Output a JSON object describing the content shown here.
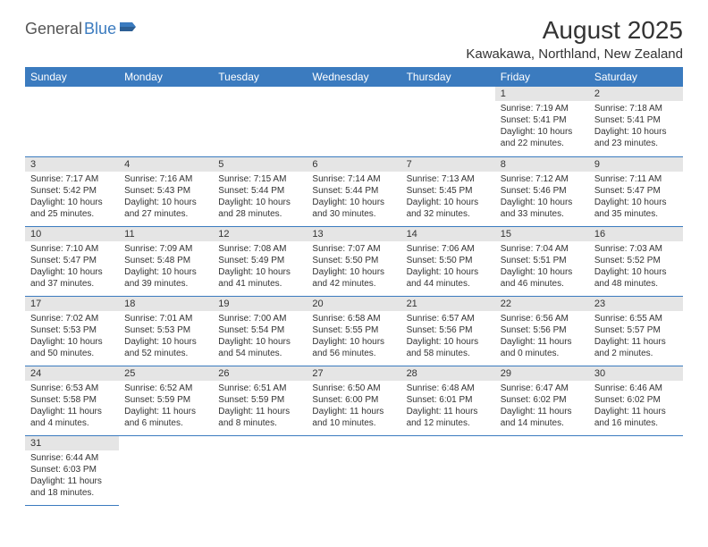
{
  "logo": {
    "word1": "General",
    "word2": "Blue"
  },
  "title": "August 2025",
  "location": "Kawakawa, Northland, New Zealand",
  "colors": {
    "accent": "#3b7bbf",
    "header_gray": "#e5e5e5",
    "text": "#333333",
    "bg": "#ffffff"
  },
  "weekdays": [
    "Sunday",
    "Monday",
    "Tuesday",
    "Wednesday",
    "Thursday",
    "Friday",
    "Saturday"
  ],
  "weeks": [
    [
      null,
      null,
      null,
      null,
      null,
      {
        "num": "1",
        "sunrise": "Sunrise: 7:19 AM",
        "sunset": "Sunset: 5:41 PM",
        "daylight": "Daylight: 10 hours and 22 minutes."
      },
      {
        "num": "2",
        "sunrise": "Sunrise: 7:18 AM",
        "sunset": "Sunset: 5:41 PM",
        "daylight": "Daylight: 10 hours and 23 minutes."
      }
    ],
    [
      {
        "num": "3",
        "sunrise": "Sunrise: 7:17 AM",
        "sunset": "Sunset: 5:42 PM",
        "daylight": "Daylight: 10 hours and 25 minutes."
      },
      {
        "num": "4",
        "sunrise": "Sunrise: 7:16 AM",
        "sunset": "Sunset: 5:43 PM",
        "daylight": "Daylight: 10 hours and 27 minutes."
      },
      {
        "num": "5",
        "sunrise": "Sunrise: 7:15 AM",
        "sunset": "Sunset: 5:44 PM",
        "daylight": "Daylight: 10 hours and 28 minutes."
      },
      {
        "num": "6",
        "sunrise": "Sunrise: 7:14 AM",
        "sunset": "Sunset: 5:44 PM",
        "daylight": "Daylight: 10 hours and 30 minutes."
      },
      {
        "num": "7",
        "sunrise": "Sunrise: 7:13 AM",
        "sunset": "Sunset: 5:45 PM",
        "daylight": "Daylight: 10 hours and 32 minutes."
      },
      {
        "num": "8",
        "sunrise": "Sunrise: 7:12 AM",
        "sunset": "Sunset: 5:46 PM",
        "daylight": "Daylight: 10 hours and 33 minutes."
      },
      {
        "num": "9",
        "sunrise": "Sunrise: 7:11 AM",
        "sunset": "Sunset: 5:47 PM",
        "daylight": "Daylight: 10 hours and 35 minutes."
      }
    ],
    [
      {
        "num": "10",
        "sunrise": "Sunrise: 7:10 AM",
        "sunset": "Sunset: 5:47 PM",
        "daylight": "Daylight: 10 hours and 37 minutes."
      },
      {
        "num": "11",
        "sunrise": "Sunrise: 7:09 AM",
        "sunset": "Sunset: 5:48 PM",
        "daylight": "Daylight: 10 hours and 39 minutes."
      },
      {
        "num": "12",
        "sunrise": "Sunrise: 7:08 AM",
        "sunset": "Sunset: 5:49 PM",
        "daylight": "Daylight: 10 hours and 41 minutes."
      },
      {
        "num": "13",
        "sunrise": "Sunrise: 7:07 AM",
        "sunset": "Sunset: 5:50 PM",
        "daylight": "Daylight: 10 hours and 42 minutes."
      },
      {
        "num": "14",
        "sunrise": "Sunrise: 7:06 AM",
        "sunset": "Sunset: 5:50 PM",
        "daylight": "Daylight: 10 hours and 44 minutes."
      },
      {
        "num": "15",
        "sunrise": "Sunrise: 7:04 AM",
        "sunset": "Sunset: 5:51 PM",
        "daylight": "Daylight: 10 hours and 46 minutes."
      },
      {
        "num": "16",
        "sunrise": "Sunrise: 7:03 AM",
        "sunset": "Sunset: 5:52 PM",
        "daylight": "Daylight: 10 hours and 48 minutes."
      }
    ],
    [
      {
        "num": "17",
        "sunrise": "Sunrise: 7:02 AM",
        "sunset": "Sunset: 5:53 PM",
        "daylight": "Daylight: 10 hours and 50 minutes."
      },
      {
        "num": "18",
        "sunrise": "Sunrise: 7:01 AM",
        "sunset": "Sunset: 5:53 PM",
        "daylight": "Daylight: 10 hours and 52 minutes."
      },
      {
        "num": "19",
        "sunrise": "Sunrise: 7:00 AM",
        "sunset": "Sunset: 5:54 PM",
        "daylight": "Daylight: 10 hours and 54 minutes."
      },
      {
        "num": "20",
        "sunrise": "Sunrise: 6:58 AM",
        "sunset": "Sunset: 5:55 PM",
        "daylight": "Daylight: 10 hours and 56 minutes."
      },
      {
        "num": "21",
        "sunrise": "Sunrise: 6:57 AM",
        "sunset": "Sunset: 5:56 PM",
        "daylight": "Daylight: 10 hours and 58 minutes."
      },
      {
        "num": "22",
        "sunrise": "Sunrise: 6:56 AM",
        "sunset": "Sunset: 5:56 PM",
        "daylight": "Daylight: 11 hours and 0 minutes."
      },
      {
        "num": "23",
        "sunrise": "Sunrise: 6:55 AM",
        "sunset": "Sunset: 5:57 PM",
        "daylight": "Daylight: 11 hours and 2 minutes."
      }
    ],
    [
      {
        "num": "24",
        "sunrise": "Sunrise: 6:53 AM",
        "sunset": "Sunset: 5:58 PM",
        "daylight": "Daylight: 11 hours and 4 minutes."
      },
      {
        "num": "25",
        "sunrise": "Sunrise: 6:52 AM",
        "sunset": "Sunset: 5:59 PM",
        "daylight": "Daylight: 11 hours and 6 minutes."
      },
      {
        "num": "26",
        "sunrise": "Sunrise: 6:51 AM",
        "sunset": "Sunset: 5:59 PM",
        "daylight": "Daylight: 11 hours and 8 minutes."
      },
      {
        "num": "27",
        "sunrise": "Sunrise: 6:50 AM",
        "sunset": "Sunset: 6:00 PM",
        "daylight": "Daylight: 11 hours and 10 minutes."
      },
      {
        "num": "28",
        "sunrise": "Sunrise: 6:48 AM",
        "sunset": "Sunset: 6:01 PM",
        "daylight": "Daylight: 11 hours and 12 minutes."
      },
      {
        "num": "29",
        "sunrise": "Sunrise: 6:47 AM",
        "sunset": "Sunset: 6:02 PM",
        "daylight": "Daylight: 11 hours and 14 minutes."
      },
      {
        "num": "30",
        "sunrise": "Sunrise: 6:46 AM",
        "sunset": "Sunset: 6:02 PM",
        "daylight": "Daylight: 11 hours and 16 minutes."
      }
    ],
    [
      {
        "num": "31",
        "sunrise": "Sunrise: 6:44 AM",
        "sunset": "Sunset: 6:03 PM",
        "daylight": "Daylight: 11 hours and 18 minutes."
      },
      null,
      null,
      null,
      null,
      null,
      null
    ]
  ]
}
